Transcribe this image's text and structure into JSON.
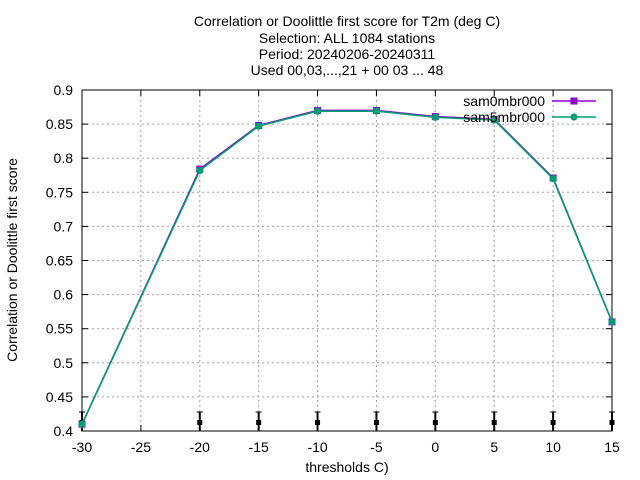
{
  "chart_data": {
    "type": "line",
    "title": [
      "Correlation or Doolittle first score  for T2m (deg C)",
      "Selection: ALL   1084 stations",
      "Period: 20240206-20240311",
      "Used 00,03,...,21 + 00 03 ... 48"
    ],
    "xlabel": "thresholds C)",
    "ylabel": "Correlation or Doolittle first score",
    "xlim": [
      -30,
      15
    ],
    "ylim": [
      0.4,
      0.9
    ],
    "xticks": [
      -30,
      -25,
      -20,
      -15,
      -10,
      -5,
      0,
      5,
      10,
      15
    ],
    "yticks": [
      0.4,
      0.45,
      0.5,
      0.55,
      0.6,
      0.65,
      0.7,
      0.75,
      0.8,
      0.85,
      0.9
    ],
    "grid": true,
    "legend_position": "top-right",
    "series": [
      {
        "name": "sam0mbr000",
        "color": "#9400d3",
        "x": [
          -30,
          -20,
          -15,
          -10,
          -5,
          0,
          5,
          10,
          15
        ],
        "y": [
          0.41,
          0.784,
          0.848,
          0.87,
          0.87,
          0.861,
          0.857,
          0.771,
          0.56
        ]
      },
      {
        "name": "sam5mbr000",
        "color": "#009e73",
        "x": [
          -30,
          -20,
          -15,
          -10,
          -5,
          0,
          5,
          10,
          15
        ],
        "y": [
          0.41,
          0.782,
          0.847,
          0.869,
          0.869,
          0.86,
          0.856,
          0.77,
          0.56
        ]
      }
    ],
    "error_markers_x": [
      -30,
      -20,
      -15,
      -10,
      -5,
      0,
      5,
      10,
      15
    ]
  }
}
